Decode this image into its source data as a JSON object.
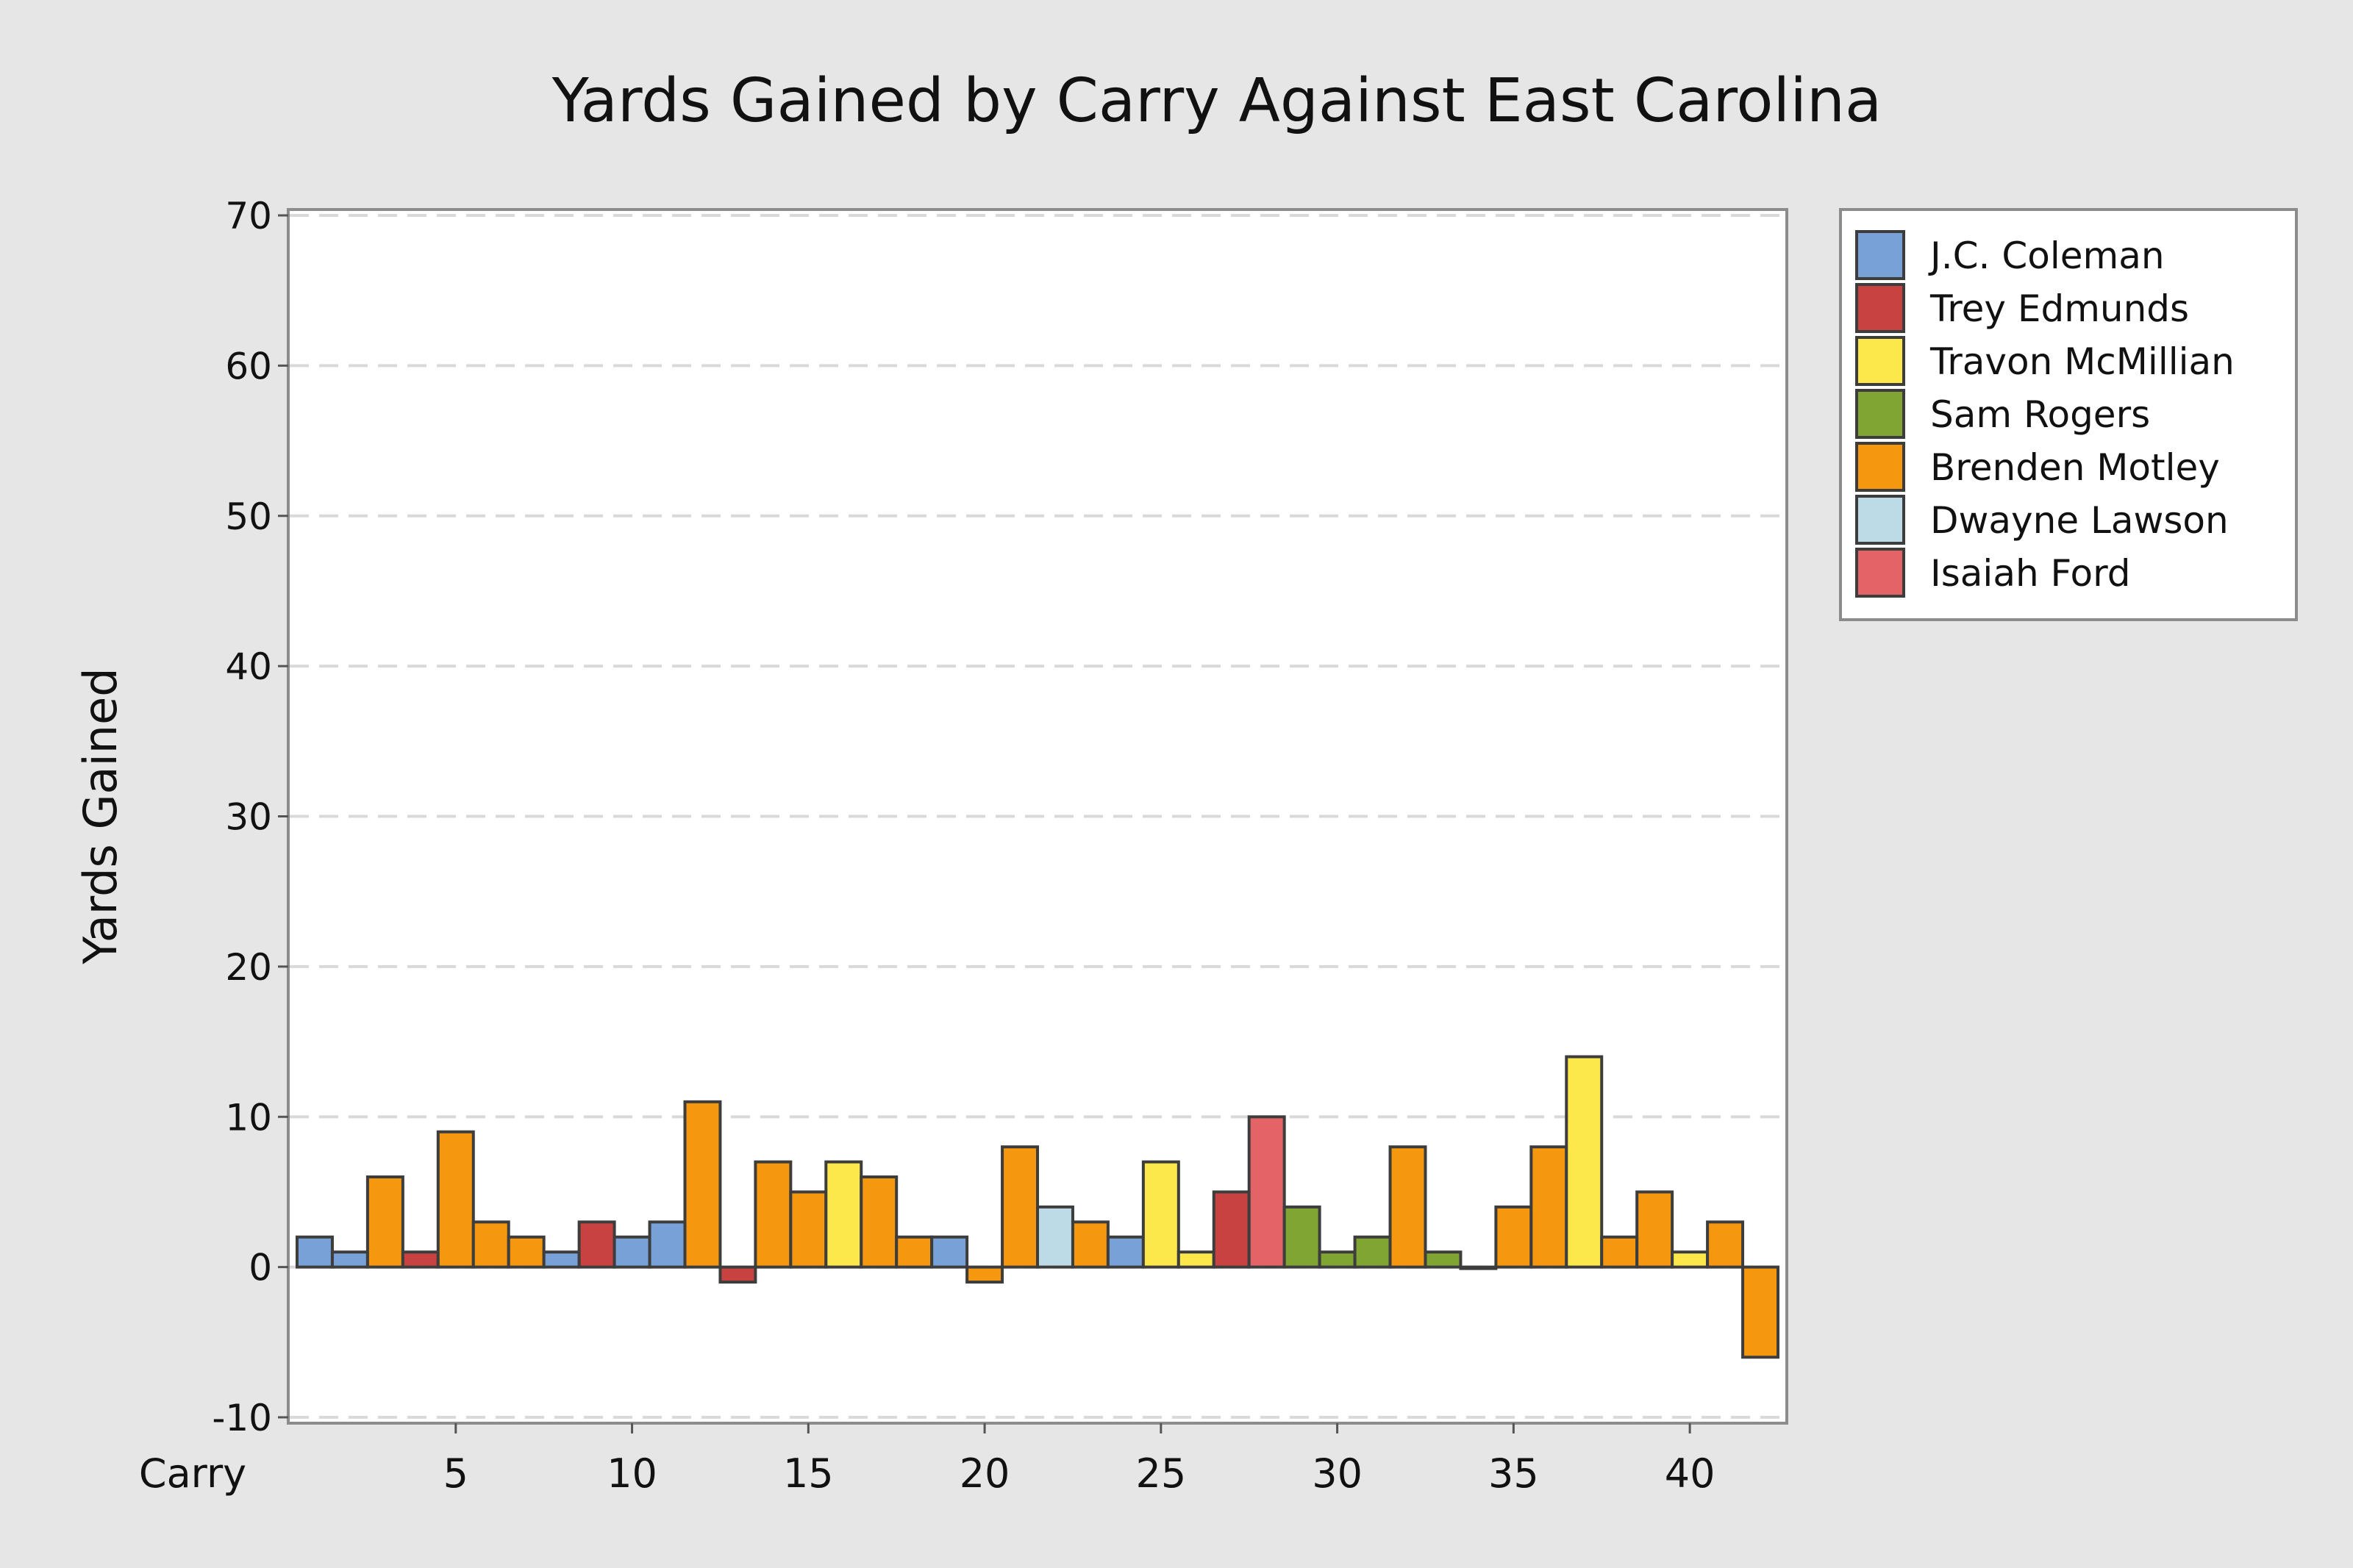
{
  "chart_data": {
    "type": "bar",
    "title": "Yards Gained by Carry Against East Carolina",
    "xlabel": "Carry",
    "ylabel": "Yards Gained",
    "xlim": [
      0.5,
      42.5
    ],
    "ylim": [
      -10,
      70
    ],
    "x_ticks": [
      5,
      10,
      15,
      20,
      25,
      30,
      35,
      40
    ],
    "y_ticks": [
      -10,
      0,
      10,
      20,
      30,
      40,
      50,
      60,
      70
    ],
    "grid": "horizontal dashed",
    "legend_position": "right",
    "series": [
      {
        "name": "J.C. Coleman",
        "color": "#77a1d7"
      },
      {
        "name": "Trey Edmunds",
        "color": "#c94242"
      },
      {
        "name": "Travon McMillian",
        "color": "#fde84c"
      },
      {
        "name": "Sam Rogers",
        "color": "#81a533"
      },
      {
        "name": "Brenden Motley",
        "color": "#f5970f"
      },
      {
        "name": "Dwayne Lawson",
        "color": "#bcdbe6"
      },
      {
        "name": "Isaiah Ford",
        "color": "#e36366"
      }
    ],
    "carries": [
      {
        "carry": 1,
        "yards": 2,
        "player": "J.C. Coleman"
      },
      {
        "carry": 2,
        "yards": 1,
        "player": "J.C. Coleman"
      },
      {
        "carry": 3,
        "yards": 6,
        "player": "Brenden Motley"
      },
      {
        "carry": 4,
        "yards": 1,
        "player": "Trey Edmunds"
      },
      {
        "carry": 5,
        "yards": 9,
        "player": "Brenden Motley"
      },
      {
        "carry": 6,
        "yards": 3,
        "player": "Brenden Motley"
      },
      {
        "carry": 7,
        "yards": 2,
        "player": "Brenden Motley"
      },
      {
        "carry": 8,
        "yards": 1,
        "player": "J.C. Coleman"
      },
      {
        "carry": 9,
        "yards": 3,
        "player": "Trey Edmunds"
      },
      {
        "carry": 10,
        "yards": 2,
        "player": "J.C. Coleman"
      },
      {
        "carry": 11,
        "yards": 3,
        "player": "J.C. Coleman"
      },
      {
        "carry": 12,
        "yards": 11,
        "player": "Brenden Motley"
      },
      {
        "carry": 13,
        "yards": -1,
        "player": "Trey Edmunds"
      },
      {
        "carry": 14,
        "yards": 7,
        "player": "Brenden Motley"
      },
      {
        "carry": 15,
        "yards": 5,
        "player": "Brenden Motley"
      },
      {
        "carry": 16,
        "yards": 7,
        "player": "Travon McMillian"
      },
      {
        "carry": 17,
        "yards": 6,
        "player": "Brenden Motley"
      },
      {
        "carry": 18,
        "yards": 2,
        "player": "Brenden Motley"
      },
      {
        "carry": 19,
        "yards": 2,
        "player": "J.C. Coleman"
      },
      {
        "carry": 20,
        "yards": -1,
        "player": "Brenden Motley"
      },
      {
        "carry": 21,
        "yards": 8,
        "player": "Brenden Motley"
      },
      {
        "carry": 22,
        "yards": 4,
        "player": "Dwayne Lawson"
      },
      {
        "carry": 23,
        "yards": 3,
        "player": "Brenden Motley"
      },
      {
        "carry": 24,
        "yards": 2,
        "player": "J.C. Coleman"
      },
      {
        "carry": 25,
        "yards": 7,
        "player": "Travon McMillian"
      },
      {
        "carry": 26,
        "yards": 1,
        "player": "Travon McMillian"
      },
      {
        "carry": 27,
        "yards": 5,
        "player": "Trey Edmunds"
      },
      {
        "carry": 28,
        "yards": 10,
        "player": "Isaiah Ford"
      },
      {
        "carry": 29,
        "yards": 4,
        "player": "Sam Rogers"
      },
      {
        "carry": 30,
        "yards": 1,
        "player": "Sam Rogers"
      },
      {
        "carry": 31,
        "yards": 2,
        "player": "Sam Rogers"
      },
      {
        "carry": 32,
        "yards": 8,
        "player": "Brenden Motley"
      },
      {
        "carry": 33,
        "yards": 1,
        "player": "Sam Rogers"
      },
      {
        "carry": 34,
        "yards": 0,
        "player": "Brenden Motley"
      },
      {
        "carry": 35,
        "yards": 4,
        "player": "Brenden Motley"
      },
      {
        "carry": 36,
        "yards": 8,
        "player": "Brenden Motley"
      },
      {
        "carry": 37,
        "yards": 14,
        "player": "Travon McMillian"
      },
      {
        "carry": 38,
        "yards": 2,
        "player": "Brenden Motley"
      },
      {
        "carry": 39,
        "yards": 5,
        "player": "Brenden Motley"
      },
      {
        "carry": 40,
        "yards": 1,
        "player": "Travon McMillian"
      },
      {
        "carry": 41,
        "yards": 3,
        "player": "Brenden Motley"
      },
      {
        "carry": 42,
        "yards": -6,
        "player": "Brenden Motley"
      }
    ]
  }
}
